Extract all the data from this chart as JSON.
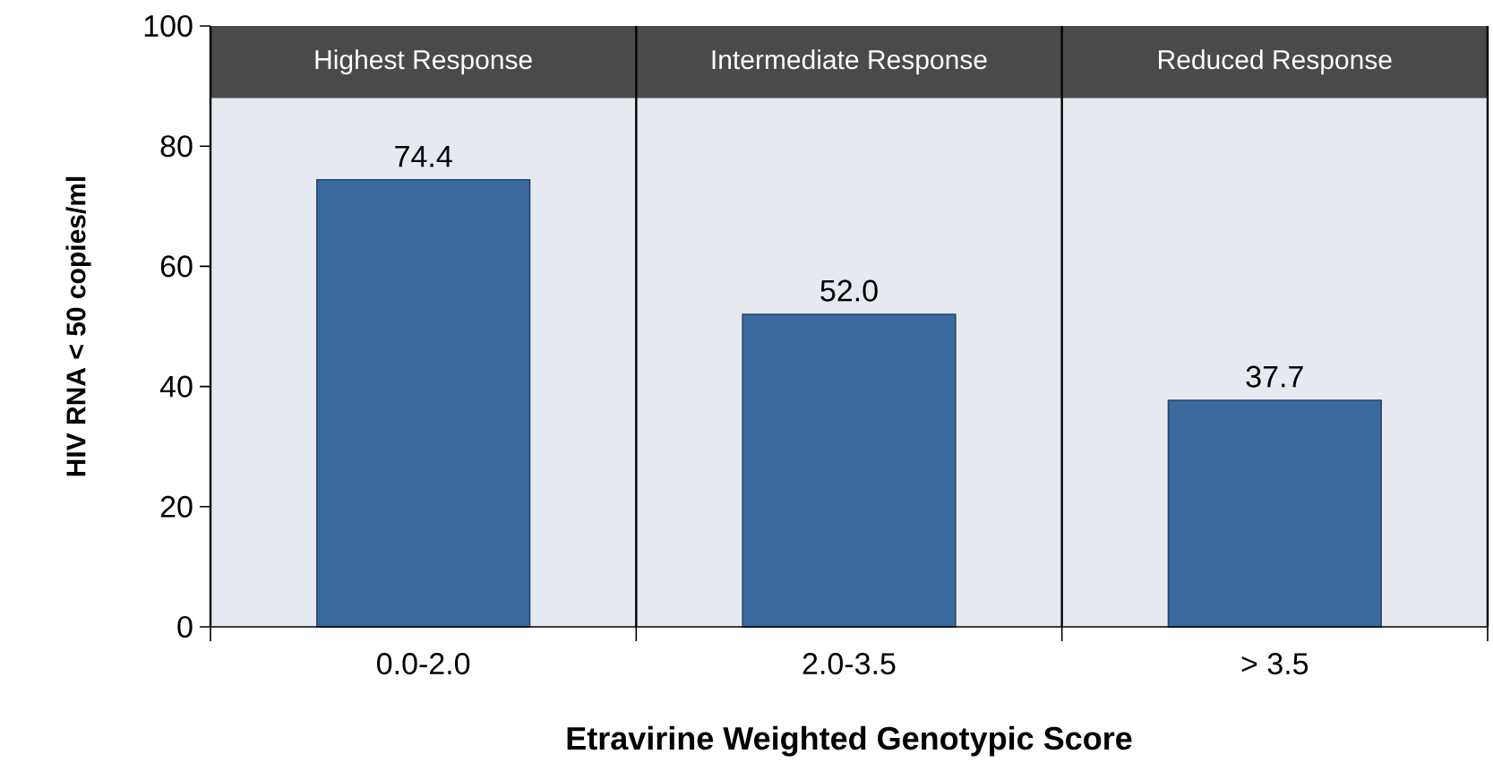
{
  "chart_data": {
    "type": "bar",
    "xlabel": "Etravirine Weighted Genotypic Score",
    "ylabel": "HIV RNA < 50 copies/ml",
    "categories": [
      "0.0-2.0",
      "2.0-3.5",
      "> 3.5"
    ],
    "values": [
      74.4,
      52.0,
      37.7
    ],
    "color": "#3a6a9e",
    "value_labels": [
      "74.4",
      "52.0",
      "37.7"
    ],
    "ylim": [
      0,
      100
    ],
    "yticks": [
      0,
      20,
      40,
      60,
      80,
      100
    ],
    "grid": "x",
    "bands": [
      {
        "axis": "y",
        "from": 88,
        "to": 100,
        "color": "#4a4a4a"
      }
    ],
    "annotations": [
      "Highest Response",
      "Intermediate Response",
      "Reduced Response"
    ]
  }
}
